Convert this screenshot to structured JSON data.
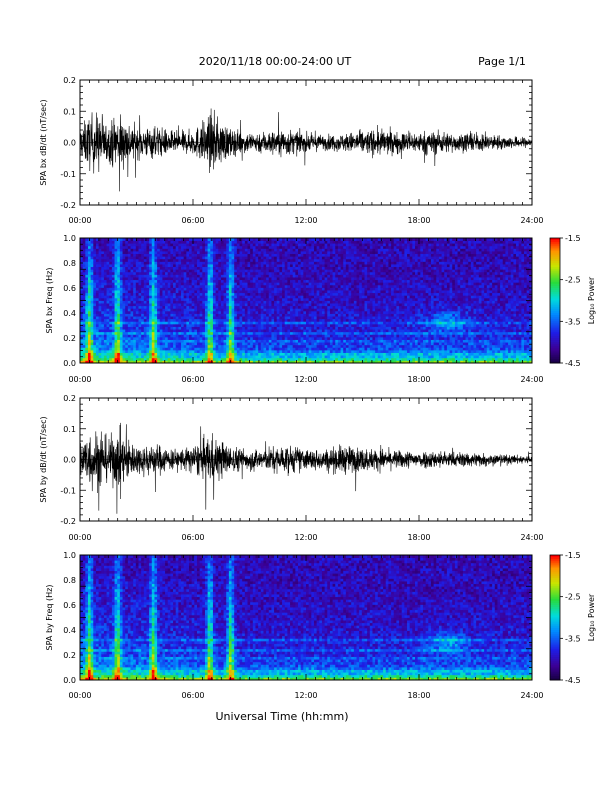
{
  "header": {
    "title": "2020/11/18  00:00-24:00 UT",
    "page": "Page 1/1"
  },
  "footer": {
    "xlabel": "Universal Time (hh:mm)"
  },
  "chart_data": [
    {
      "type": "line",
      "ylabel": "SPA bx dB/dt (nT/sec)",
      "xlabel": "",
      "x_ticks": [
        "00:00",
        "06:00",
        "12:00",
        "18:00",
        "24:00"
      ],
      "y_ticks": [
        "0.2",
        "0.1",
        "0.0",
        "-0.1",
        "-0.2"
      ],
      "xlim": [
        0,
        24
      ],
      "ylim": [
        -0.2,
        0.2
      ],
      "x": [
        0,
        0.5,
        1,
        1.5,
        2,
        3,
        4,
        5,
        6,
        7,
        8,
        9,
        10,
        11,
        12,
        13,
        14,
        15,
        16,
        17,
        18,
        19,
        20,
        21,
        22,
        23,
        24
      ],
      "envelope": [
        0.1,
        0.18,
        0.2,
        0.12,
        0.2,
        0.1,
        0.11,
        0.07,
        0.08,
        0.2,
        0.09,
        0.07,
        0.08,
        0.09,
        0.06,
        0.05,
        0.06,
        0.08,
        0.09,
        0.07,
        0.07,
        0.08,
        0.06,
        0.06,
        0.05,
        0.04,
        0.03
      ]
    },
    {
      "type": "heatmap",
      "ylabel": "SPA bx Freq (Hz)",
      "x_ticks": [
        "00:00",
        "06:00",
        "12:00",
        "18:00",
        "24:00"
      ],
      "y_ticks": [
        "1.0",
        "0.8",
        "0.6",
        "0.4",
        "0.2",
        "0.0"
      ],
      "xlim": [
        0,
        24
      ],
      "ylim": [
        0,
        1
      ],
      "colorbar_label": "Log₁₀ Power",
      "colorbar_ticks": [
        "-1.5",
        "-2.5",
        "-3.5",
        "-4.5"
      ],
      "colorbar_range": [
        -4.5,
        -1.5
      ],
      "bursts_hours": [
        0.5,
        2.0,
        3.9,
        6.9,
        8.0
      ],
      "bands_hz": [
        0.08,
        0.17,
        0.24,
        0.32
      ],
      "blob": {
        "hour": 19.5,
        "freq": 0.33
      }
    },
    {
      "type": "line",
      "ylabel": "SPA by dB/dt (nT/sec)",
      "xlabel": "",
      "x_ticks": [
        "00:00",
        "06:00",
        "12:00",
        "18:00",
        "24:00"
      ],
      "y_ticks": [
        "0.2",
        "0.1",
        "0.0",
        "-0.1",
        "-0.2"
      ],
      "xlim": [
        0,
        24
      ],
      "ylim": [
        -0.2,
        0.2
      ],
      "x": [
        0,
        0.5,
        1,
        1.5,
        2,
        3,
        4,
        5,
        6,
        7,
        8,
        9,
        10,
        11,
        12,
        13,
        14,
        15,
        16,
        17,
        18,
        19,
        20,
        21,
        22,
        23,
        24
      ],
      "envelope": [
        0.12,
        0.2,
        0.2,
        0.14,
        0.2,
        0.1,
        0.11,
        0.07,
        0.09,
        0.17,
        0.09,
        0.07,
        0.08,
        0.1,
        0.07,
        0.07,
        0.1,
        0.08,
        0.07,
        0.06,
        0.06,
        0.06,
        0.05,
        0.05,
        0.04,
        0.03,
        0.03
      ]
    },
    {
      "type": "heatmap",
      "ylabel": "SPA by Freq (Hz)",
      "x_ticks": [
        "00:00",
        "06:00",
        "12:00",
        "18:00",
        "24:00"
      ],
      "y_ticks": [
        "1.0",
        "0.8",
        "0.6",
        "0.4",
        "0.2",
        "0.0"
      ],
      "xlim": [
        0,
        24
      ],
      "ylim": [
        0,
        1
      ],
      "colorbar_label": "Log₁₀ Power",
      "colorbar_ticks": [
        "-1.5",
        "-2.5",
        "-3.5",
        "-4.5"
      ],
      "colorbar_range": [
        -4.5,
        -1.5
      ],
      "bursts_hours": [
        0.5,
        2.0,
        3.9,
        6.9,
        8.0
      ],
      "bands_hz": [
        0.08,
        0.17,
        0.24,
        0.32
      ],
      "blob": {
        "hour": 19.5,
        "freq": 0.3
      }
    }
  ]
}
